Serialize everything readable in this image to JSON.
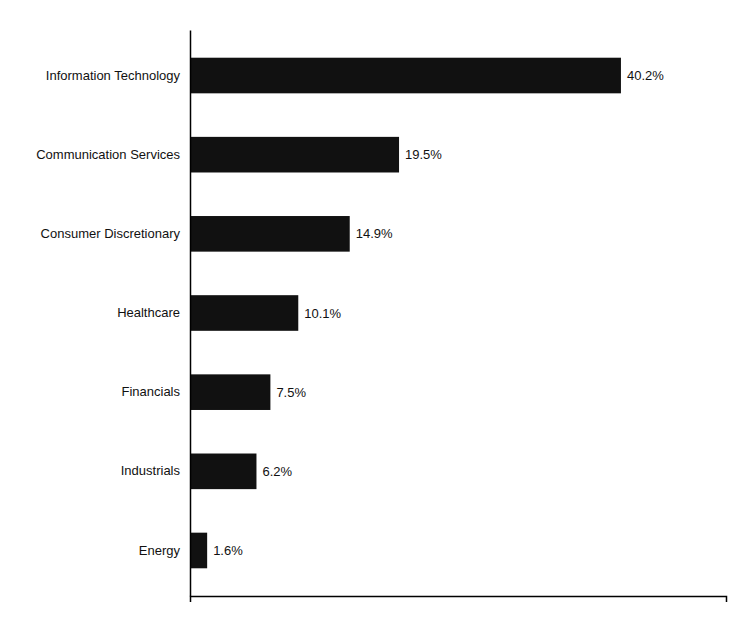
{
  "chart_data": {
    "type": "bar",
    "orientation": "horizontal",
    "categories": [
      "Information Technology",
      "Communication Services",
      "Consumer Discretionary",
      "Healthcare",
      "Financials",
      "Industrials",
      "Energy"
    ],
    "values": [
      40.2,
      19.5,
      14.9,
      10.1,
      7.5,
      6.2,
      1.6
    ],
    "value_labels": [
      "40.2%",
      "19.5%",
      "14.9%",
      "10.1%",
      "7.5%",
      "6.2%",
      "1.6%"
    ],
    "color": "#111111",
    "xlim": [
      0,
      50
    ],
    "xticks": [],
    "grid": false,
    "data_labels": true,
    "tick_labels": "y"
  }
}
